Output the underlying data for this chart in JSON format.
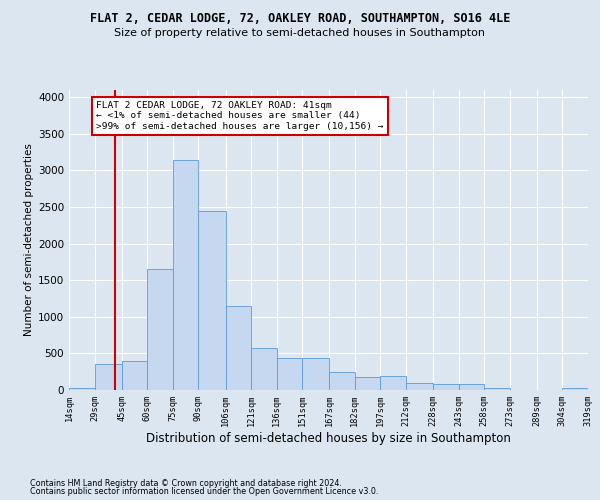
{
  "title": "FLAT 2, CEDAR LODGE, 72, OAKLEY ROAD, SOUTHAMPTON, SO16 4LE",
  "subtitle": "Size of property relative to semi-detached houses in Southampton",
  "xlabel": "Distribution of semi-detached houses by size in Southampton",
  "ylabel": "Number of semi-detached properties",
  "footer1": "Contains HM Land Registry data © Crown copyright and database right 2024.",
  "footer2": "Contains public sector information licensed under the Open Government Licence v3.0.",
  "property_size": 41,
  "property_label": "FLAT 2 CEDAR LODGE, 72 OAKLEY ROAD: 41sqm",
  "smaller_text": "← <1% of semi-detached houses are smaller (44)",
  "larger_text": ">99% of semi-detached houses are larger (10,156) →",
  "bar_edges": [
    14,
    29,
    45,
    60,
    75,
    90,
    106,
    121,
    136,
    151,
    167,
    182,
    197,
    212,
    228,
    243,
    258,
    273,
    289,
    304,
    319
  ],
  "bar_heights": [
    30,
    350,
    400,
    1650,
    3150,
    2450,
    1150,
    580,
    440,
    440,
    250,
    175,
    185,
    100,
    80,
    80,
    30,
    0,
    0,
    30
  ],
  "bar_color": "#c5d8f0",
  "bar_edge_color": "#5b9bd5",
  "background_color": "#dce6f1",
  "plot_bg_color": "#dce6f1",
  "red_line_color": "#cc0000",
  "ylim": [
    0,
    4100
  ],
  "yticks": [
    0,
    500,
    1000,
    1500,
    2000,
    2500,
    3000,
    3500,
    4000
  ],
  "tick_labels": [
    "14sqm",
    "29sqm",
    "45sqm",
    "60sqm",
    "75sqm",
    "90sqm",
    "106sqm",
    "121sqm",
    "136sqm",
    "151sqm",
    "167sqm",
    "182sqm",
    "197sqm",
    "212sqm",
    "228sqm",
    "243sqm",
    "258sqm",
    "273sqm",
    "289sqm",
    "304sqm",
    "319sqm"
  ],
  "annotation_box_color": "#ffffff",
  "annotation_box_edge": "#cc0000",
  "title_fontsize": 8.5,
  "subtitle_fontsize": 8,
  "ylabel_fontsize": 7.5,
  "xlabel_fontsize": 8.5,
  "ytick_fontsize": 7.5,
  "xtick_fontsize": 6.2,
  "footer_fontsize": 5.8,
  "annot_fontsize": 6.8
}
